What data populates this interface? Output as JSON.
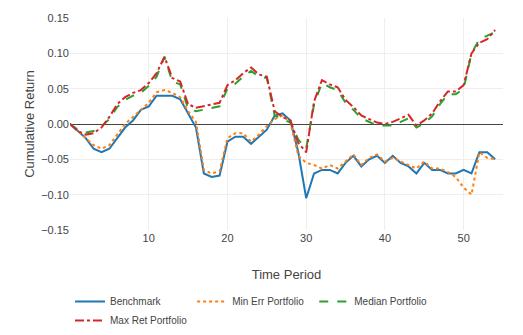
{
  "chart_data": {
    "type": "line",
    "xlabel": "Time Period",
    "ylabel": "Cumulative Return",
    "x": [
      0,
      1,
      2,
      3,
      4,
      5,
      6,
      7,
      8,
      9,
      10,
      11,
      12,
      13,
      14,
      15,
      16,
      17,
      18,
      19,
      20,
      21,
      22,
      23,
      24,
      25,
      26,
      27,
      28,
      29,
      30,
      31,
      32,
      33,
      34,
      35,
      36,
      37,
      38,
      39,
      40,
      41,
      42,
      43,
      44,
      45,
      46,
      47,
      48,
      49,
      50,
      51,
      52,
      53,
      54
    ],
    "xlim": [
      0,
      55
    ],
    "xticks": [
      10,
      20,
      30,
      40,
      50
    ],
    "ylim": [
      -0.15,
      0.15
    ],
    "yticks": [
      {
        "value": -0.15,
        "label": "−0.15"
      },
      {
        "value": -0.1,
        "label": "−0.10"
      },
      {
        "value": -0.05,
        "label": "−0.05"
      },
      {
        "value": 0,
        "label": "0.00"
      },
      {
        "value": 0.05,
        "label": "0.05"
      },
      {
        "value": 0.1,
        "label": "0.10"
      },
      {
        "value": 0.15,
        "label": "0.15"
      }
    ],
    "grid": true,
    "legend": "lower left",
    "series": [
      {
        "name": "Benchmark",
        "line_style": "solid",
        "values": [
          0.0,
          -0.01,
          -0.02,
          -0.035,
          -0.04,
          -0.035,
          -0.02,
          -0.005,
          0.005,
          0.02,
          0.025,
          0.04,
          0.04,
          0.04,
          0.035,
          0.015,
          -0.005,
          -0.07,
          -0.075,
          -0.073,
          -0.025,
          -0.018,
          -0.018,
          -0.028,
          -0.018,
          -0.008,
          0.012,
          0.015,
          0.005,
          -0.04,
          -0.105,
          -0.07,
          -0.065,
          -0.065,
          -0.07,
          -0.055,
          -0.045,
          -0.06,
          -0.05,
          -0.045,
          -0.055,
          -0.045,
          -0.055,
          -0.06,
          -0.07,
          -0.055,
          -0.065,
          -0.065,
          -0.07,
          -0.07,
          -0.065,
          -0.07,
          -0.04,
          -0.04,
          -0.05
        ]
      },
      {
        "name": "Min Err Portfolio",
        "line_style": "dotted",
        "values": [
          0.0,
          -0.01,
          -0.02,
          -0.03,
          -0.035,
          -0.03,
          -0.015,
          0.0,
          0.01,
          0.02,
          0.03,
          0.045,
          0.048,
          0.044,
          0.038,
          0.018,
          0.003,
          -0.065,
          -0.07,
          -0.067,
          -0.02,
          -0.013,
          -0.013,
          -0.025,
          -0.015,
          -0.003,
          0.007,
          0.012,
          0.002,
          -0.045,
          -0.055,
          -0.058,
          -0.063,
          -0.058,
          -0.063,
          -0.053,
          -0.043,
          -0.058,
          -0.048,
          -0.043,
          -0.053,
          -0.048,
          -0.053,
          -0.058,
          -0.063,
          -0.053,
          -0.063,
          -0.063,
          -0.068,
          -0.075,
          -0.09,
          -0.1,
          -0.04,
          -0.048,
          -0.05
        ]
      },
      {
        "name": "Median Portfolio",
        "line_style": "dashed",
        "values": [
          0.0,
          -0.008,
          -0.012,
          -0.01,
          -0.003,
          0.007,
          0.024,
          0.034,
          0.04,
          0.044,
          0.054,
          0.067,
          0.095,
          0.06,
          0.056,
          0.022,
          0.018,
          0.02,
          0.022,
          0.025,
          0.05,
          0.057,
          0.067,
          0.075,
          0.067,
          0.065,
          0.012,
          0.007,
          0.002,
          -0.022,
          -0.035,
          0.028,
          0.058,
          0.052,
          0.048,
          0.03,
          0.02,
          0.008,
          0.003,
          -0.002,
          -0.002,
          -0.002,
          0.003,
          0.008,
          -0.005,
          0.001,
          0.011,
          0.028,
          0.042,
          0.042,
          0.05,
          0.1,
          0.12,
          0.125,
          0.13
        ]
      },
      {
        "name": "Max Ret Portfolio",
        "line_style": "dashdot",
        "values": [
          0.0,
          -0.01,
          -0.015,
          -0.013,
          -0.005,
          0.01,
          0.028,
          0.038,
          0.044,
          0.048,
          0.058,
          0.072,
          0.095,
          0.065,
          0.06,
          0.028,
          0.023,
          0.025,
          0.027,
          0.03,
          0.055,
          0.062,
          0.072,
          0.08,
          0.07,
          0.067,
          0.018,
          0.01,
          0.005,
          -0.027,
          -0.04,
          0.032,
          0.062,
          0.056,
          0.052,
          0.034,
          0.024,
          0.012,
          0.007,
          0.002,
          0.0,
          0.003,
          0.008,
          0.013,
          -0.002,
          0.005,
          0.015,
          0.032,
          0.046,
          0.046,
          0.055,
          0.1,
          0.115,
          0.12,
          0.133
        ]
      }
    ]
  }
}
